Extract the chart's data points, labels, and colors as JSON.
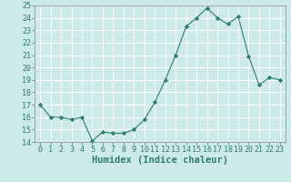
{
  "x": [
    0,
    1,
    2,
    3,
    4,
    5,
    6,
    7,
    8,
    9,
    10,
    11,
    12,
    13,
    14,
    15,
    16,
    17,
    18,
    19,
    20,
    21,
    22,
    23
  ],
  "y": [
    17,
    16,
    16,
    15.8,
    16,
    14.1,
    14.8,
    14.7,
    14.7,
    15.0,
    15.8,
    17.2,
    19.0,
    21.0,
    23.3,
    24.0,
    24.8,
    24.0,
    23.5,
    24.1,
    20.9,
    18.6,
    19.2,
    19.0
  ],
  "line_color": "#2e7d6e",
  "marker": "D",
  "marker_size": 2.2,
  "bg_color": "#cceae8",
  "grid_color": "#ffffff",
  "xlabel": "Humidex (Indice chaleur)",
  "xlabel_fontsize": 7.5,
  "tick_fontsize": 6,
  "ylim": [
    14,
    25
  ],
  "xlim": [
    -0.5,
    23.5
  ],
  "yticks": [
    14,
    15,
    16,
    17,
    18,
    19,
    20,
    21,
    22,
    23,
    24,
    25
  ],
  "xticks": [
    0,
    1,
    2,
    3,
    4,
    5,
    6,
    7,
    8,
    9,
    10,
    11,
    12,
    13,
    14,
    15,
    16,
    17,
    18,
    19,
    20,
    21,
    22,
    23
  ]
}
